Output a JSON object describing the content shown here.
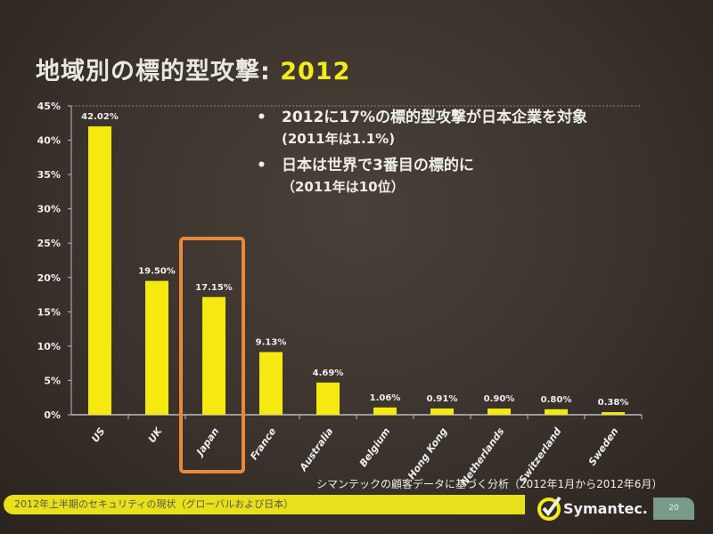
{
  "slide": {
    "title_main": "地域別の標的型攻撃: ",
    "title_year": "2012",
    "bullets": [
      {
        "text": "2012に17%の標的型攻撃が日本企業を対象",
        "sub": "(2011年は1.1%)"
      },
      {
        "text": "日本は世界で3番目の標的に",
        "sub": "（2011年は10位）"
      }
    ],
    "source_note": "シマンテックの顧客データに基づく分析（2012年1月から2012年6月）",
    "footer_text": "2012年上半期のセキュリティの現状（グローバルおよび日本）",
    "logo_text": "Symantec.",
    "page_number": "20",
    "colors": {
      "bar": "#f5e90f",
      "highlight_box": "#e8893a",
      "footer_bar": "#e8e01a"
    }
  },
  "chart_data": {
    "type": "bar",
    "categories": [
      "US",
      "UK",
      "Japan",
      "France",
      "Australia",
      "Belgium",
      "Hong Kong",
      "Netherlands",
      "Switzerland",
      "Sweden"
    ],
    "values": [
      42.02,
      19.5,
      17.15,
      9.13,
      4.69,
      1.06,
      0.91,
      0.9,
      0.8,
      0.38
    ],
    "data_labels": [
      "42.02%",
      "19.50%",
      "17.15%",
      "9.13%",
      "4.69%",
      "1.06%",
      "0.91%",
      "0.90%",
      "0.80%",
      "0.38%"
    ],
    "yticks": [
      "0%",
      "5%",
      "10%",
      "15%",
      "20%",
      "25%",
      "30%",
      "35%",
      "40%",
      "45%"
    ],
    "ylim": [
      0,
      45
    ],
    "grid": false,
    "highlighted_category": "Japan"
  }
}
